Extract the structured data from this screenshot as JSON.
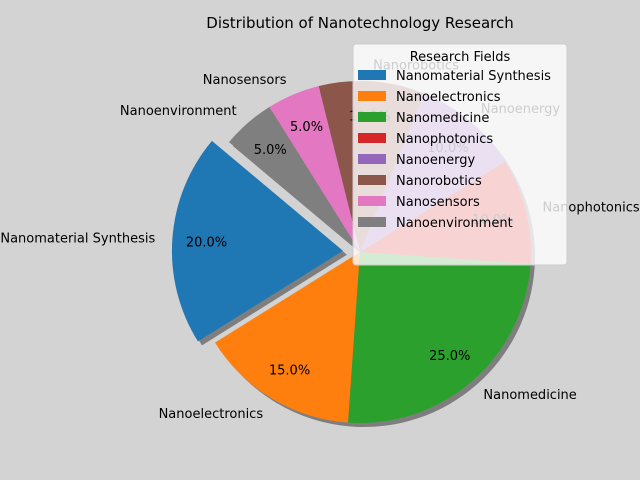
{
  "chart_data": {
    "type": "pie",
    "title": "Distribution of Nanotechnology Research",
    "legend_title": "Research Fields",
    "legend_position": "top-right",
    "shadow": true,
    "start_angle_deg": 140,
    "explode": [
      0.1,
      0,
      0,
      0,
      0,
      0,
      0,
      0
    ],
    "slices": [
      {
        "label": "Nanomaterial Synthesis",
        "value": 20,
        "pct": "20.0%",
        "color": "#1f77b4"
      },
      {
        "label": "Nanoelectronics",
        "value": 15,
        "pct": "15.0%",
        "color": "#ff7f0e"
      },
      {
        "label": "Nanomedicine",
        "value": 25,
        "pct": "25.0%",
        "color": "#2ca02c"
      },
      {
        "label": "Nanophotonics",
        "value": 10,
        "pct": "10.0%",
        "color": "#d62728"
      },
      {
        "label": "Nanoenergy",
        "value": 10,
        "pct": "10.0%",
        "color": "#9467bd"
      },
      {
        "label": "Nanorobotics",
        "value": 10,
        "pct": "10.0%",
        "color": "#8c564b"
      },
      {
        "label": "Nanosensors",
        "value": 5,
        "pct": "5.0%",
        "color": "#e377c2"
      },
      {
        "label": "Nanoenvironment",
        "value": 5,
        "pct": "5.0%",
        "color": "#7f7f7f"
      }
    ]
  }
}
